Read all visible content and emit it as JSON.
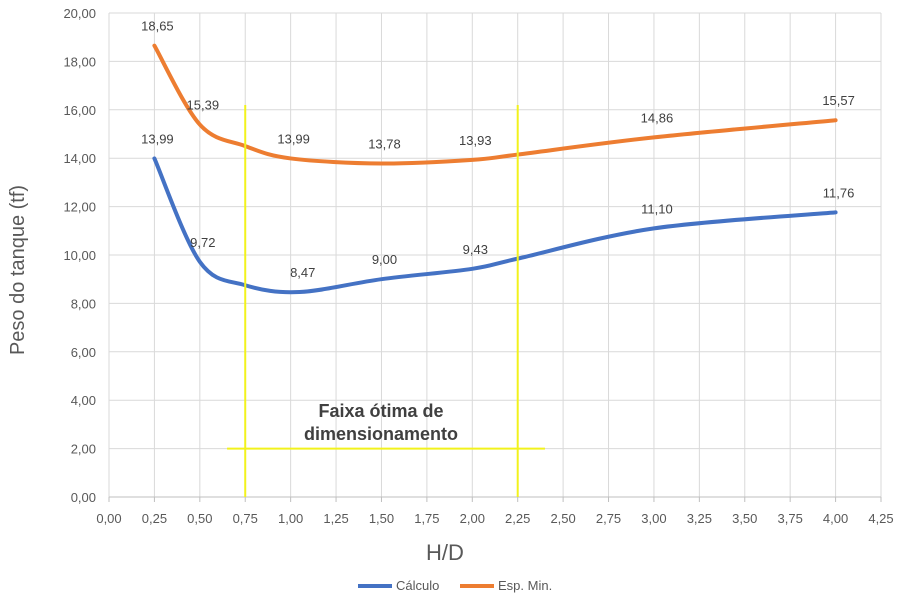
{
  "chart_data": {
    "type": "line",
    "xlabel": "H/D",
    "ylabel": "Peso do tanque (tf)",
    "xlim": [
      0,
      4.25
    ],
    "ylim": [
      0,
      20
    ],
    "x_ticks": [
      "0,00",
      "0,25",
      "0,50",
      "0,75",
      "1,00",
      "1,25",
      "1,50",
      "1,75",
      "2,00",
      "2,25",
      "2,50",
      "2,75",
      "3,00",
      "3,25",
      "3,50",
      "3,75",
      "4,00",
      "4,25"
    ],
    "y_ticks": [
      "0,00",
      "2,00",
      "4,00",
      "6,00",
      "8,00",
      "10,00",
      "12,00",
      "14,00",
      "16,00",
      "18,00",
      "20,00"
    ],
    "grid": true,
    "legend_position": "bottom",
    "series": [
      {
        "name": "Cálculo",
        "color": "#4472C4",
        "points": [
          {
            "x": 0.25,
            "y": 13.99,
            "label": "13,99"
          },
          {
            "x": 0.5,
            "y": 9.72,
            "label": "9,72"
          },
          {
            "x": 0.75,
            "y": 8.75
          },
          {
            "x": 1.05,
            "y": 8.47,
            "label": "8,47"
          },
          {
            "x": 1.5,
            "y": 9.0,
            "label": "9,00"
          },
          {
            "x": 2.0,
            "y": 9.43,
            "label": "9,43"
          },
          {
            "x": 2.25,
            "y": 9.85
          },
          {
            "x": 3.0,
            "y": 11.1,
            "label": "11,10"
          },
          {
            "x": 4.0,
            "y": 11.76,
            "label": "11,76"
          }
        ]
      },
      {
        "name": "Esp. Min.",
        "color": "#ED7D31",
        "points": [
          {
            "x": 0.25,
            "y": 18.65,
            "label": "18,65"
          },
          {
            "x": 0.5,
            "y": 15.39,
            "label": "15,39"
          },
          {
            "x": 0.75,
            "y": 14.5
          },
          {
            "x": 1.0,
            "y": 13.99,
            "label": "13,99"
          },
          {
            "x": 1.5,
            "y": 13.78,
            "label": "13,78"
          },
          {
            "x": 2.0,
            "y": 13.93,
            "label": "13,93"
          },
          {
            "x": 2.25,
            "y": 14.15
          },
          {
            "x": 3.0,
            "y": 14.86,
            "label": "14,86"
          },
          {
            "x": 4.0,
            "y": 15.57,
            "label": "15,57"
          }
        ]
      }
    ],
    "annotations": {
      "range_lines": {
        "color": "#F2F21C",
        "x_start": 0.75,
        "x_end": 2.25,
        "x_span": [
          0.65,
          2.4
        ],
        "y": 2.0,
        "y_top": 16.2
      },
      "text_lines": [
        "Faixa ótima de",
        "dimensionamento"
      ]
    }
  }
}
